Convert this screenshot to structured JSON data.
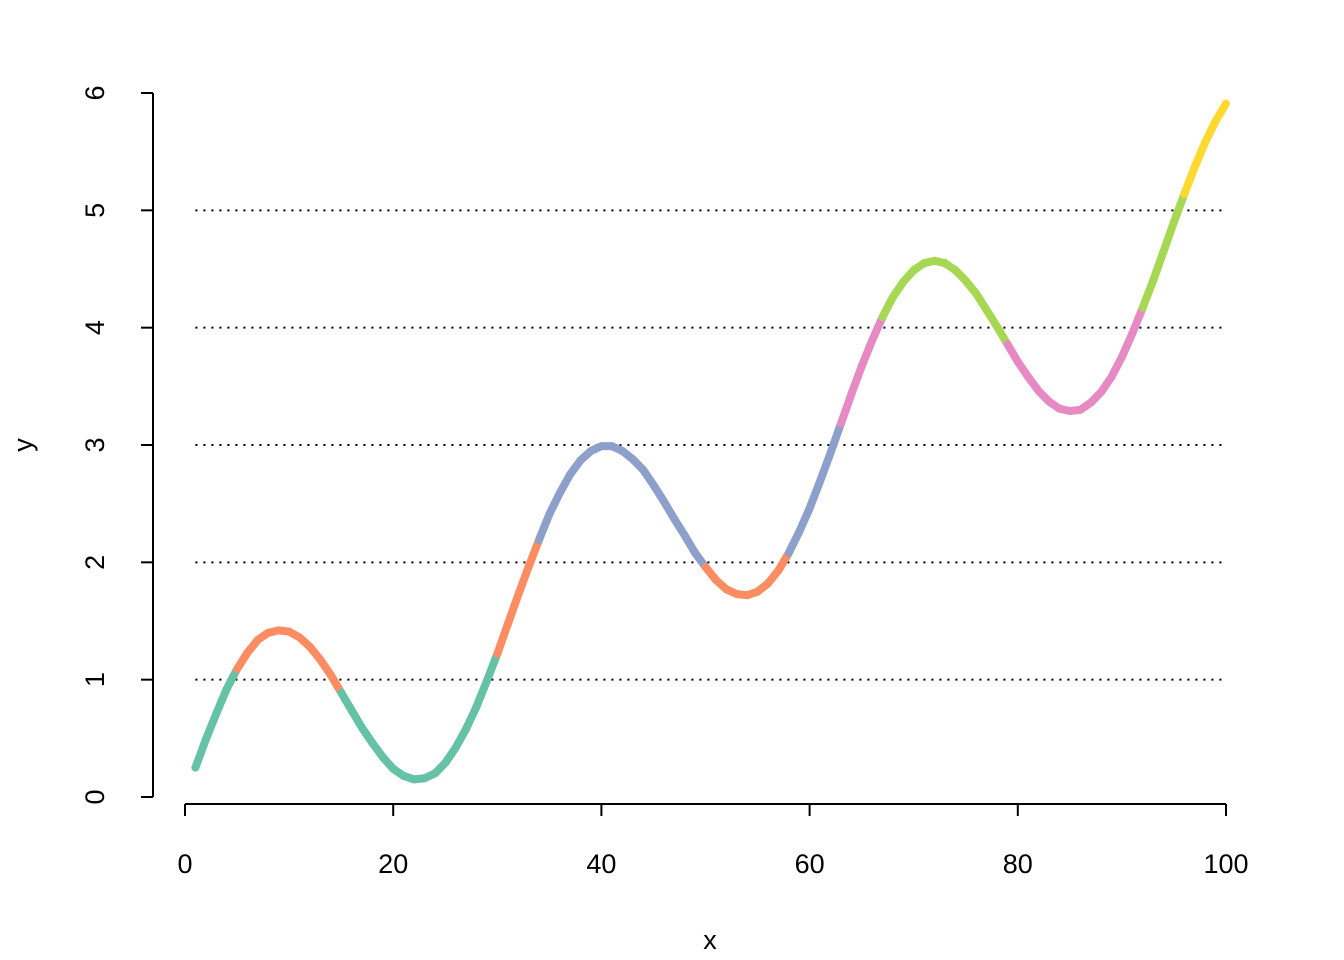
{
  "chart_data": {
    "type": "line",
    "x_label": "x",
    "y_label": "y",
    "x": [
      1,
      2,
      3,
      4,
      5,
      6,
      7,
      8,
      9,
      10,
      11,
      12,
      13,
      14,
      15,
      16,
      17,
      18,
      19,
      20,
      21,
      22,
      23,
      24,
      25,
      26,
      27,
      28,
      29,
      30,
      31,
      32,
      33,
      34,
      35,
      36,
      37,
      38,
      39,
      40,
      41,
      42,
      43,
      44,
      45,
      46,
      47,
      48,
      49,
      50,
      51,
      52,
      53,
      54,
      55,
      56,
      57,
      58,
      59,
      60,
      61,
      62,
      63,
      64,
      65,
      66,
      67,
      68,
      69,
      70,
      71,
      72,
      73,
      74,
      75,
      76,
      77,
      78,
      79,
      80,
      81,
      82,
      83,
      84,
      85,
      86,
      87,
      88,
      89,
      90,
      91,
      92,
      93,
      94,
      95,
      96,
      97,
      98,
      99,
      100
    ],
    "y": [
      0.25,
      0.49,
      0.71,
      0.92,
      1.09,
      1.23,
      1.34,
      1.4,
      1.42,
      1.41,
      1.36,
      1.28,
      1.17,
      1.04,
      0.89,
      0.74,
      0.59,
      0.46,
      0.34,
      0.24,
      0.18,
      0.15,
      0.16,
      0.2,
      0.29,
      0.42,
      0.58,
      0.77,
      0.99,
      1.22,
      1.47,
      1.72,
      1.96,
      2.19,
      2.41,
      2.59,
      2.75,
      2.87,
      2.95,
      2.99,
      2.99,
      2.95,
      2.88,
      2.79,
      2.66,
      2.52,
      2.37,
      2.23,
      2.08,
      1.96,
      1.85,
      1.77,
      1.73,
      1.72,
      1.75,
      1.82,
      1.93,
      2.08,
      2.26,
      2.46,
      2.69,
      2.93,
      3.18,
      3.43,
      3.67,
      3.89,
      4.09,
      4.26,
      4.39,
      4.49,
      4.55,
      4.57,
      4.55,
      4.49,
      4.4,
      4.29,
      4.15,
      4.01,
      3.86,
      3.71,
      3.58,
      3.46,
      3.37,
      3.31,
      3.29,
      3.3,
      3.36,
      3.45,
      3.58,
      3.75,
      3.95,
      4.17,
      4.4,
      4.65,
      4.9,
      5.14,
      5.37,
      5.58,
      5.76,
      5.91
    ],
    "hlines": [
      1,
      2,
      3,
      4,
      5
    ],
    "band_colors": [
      "#66C2A5",
      "#FC8D62",
      "#8DA0CB",
      "#E78AC3",
      "#A6D854",
      "#FFD92F"
    ],
    "xlim": [
      0,
      100
    ],
    "xticks": [
      0,
      20,
      40,
      60,
      80,
      100
    ],
    "ylim": [
      0,
      6
    ],
    "yticks": [
      0,
      1,
      2,
      3,
      4,
      5,
      6
    ]
  }
}
